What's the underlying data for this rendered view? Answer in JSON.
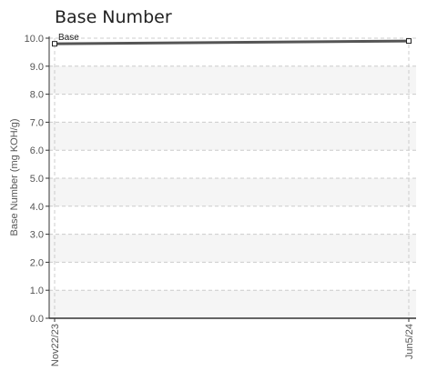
{
  "chart_data": {
    "type": "line",
    "title": "Base Number",
    "xlabel": "",
    "ylabel": "Base Number (mg KOH/g)",
    "categories": [
      "Nov22/23",
      "Jun5/24"
    ],
    "series": [
      {
        "name": "Base",
        "values": [
          9.8,
          9.9
        ]
      }
    ],
    "ylim": [
      0,
      10
    ],
    "yticks": [
      "0.0",
      "1.0",
      "2.0",
      "3.0",
      "4.0",
      "5.0",
      "6.0",
      "7.0",
      "8.0",
      "9.0",
      "10.0"
    ],
    "grid": true,
    "legend": "top-left",
    "colors": {
      "line": "#555555",
      "band": "#f5f5f5",
      "grid": "#cccccc",
      "axis": "#333333",
      "text": "#555555"
    }
  }
}
